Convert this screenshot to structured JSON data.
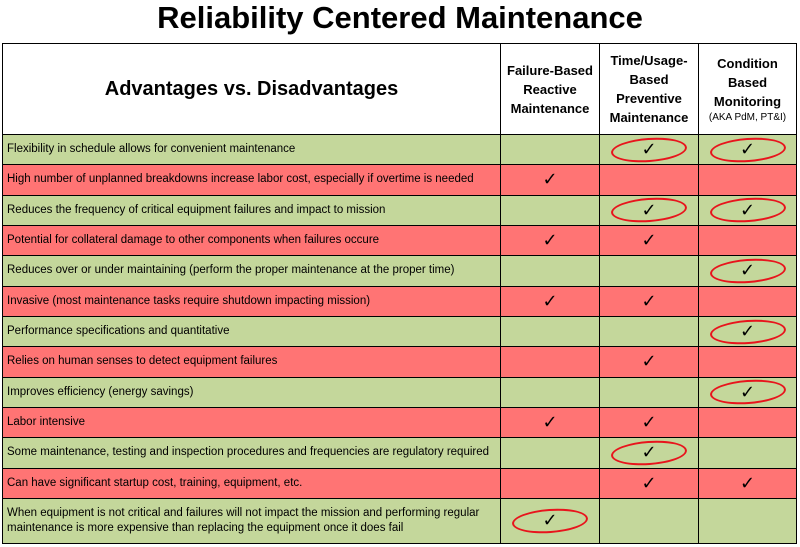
{
  "title": "Reliability Centered Maintenance",
  "table": {
    "header_main": "Advantages vs. Disadvantages",
    "columns": [
      {
        "label": "Failure-Based Reactive Maintenance",
        "sub": ""
      },
      {
        "label": "Time/Usage-Based Preventive Maintenance",
        "sub": ""
      },
      {
        "label": "Condition Based Monitoring",
        "sub": "(AKA PdM, PT&I)"
      }
    ],
    "rows": [
      {
        "text": "Flexibility in schedule allows for convenient maintenance",
        "color": "green",
        "marks": [
          "",
          "✓",
          "✓"
        ],
        "circled": [
          false,
          true,
          true
        ]
      },
      {
        "text": "High number of unplanned breakdowns increase labor cost, especially if overtime is needed",
        "color": "red",
        "marks": [
          "✓",
          "",
          ""
        ],
        "circled": [
          false,
          false,
          false
        ]
      },
      {
        "text": "Reduces the frequency of critical equipment failures and impact to mission",
        "color": "green",
        "marks": [
          "",
          "✓",
          "✓"
        ],
        "circled": [
          false,
          true,
          true
        ]
      },
      {
        "text": "Potential for collateral damage to other components when failures occure",
        "color": "red",
        "marks": [
          "✓",
          "✓",
          ""
        ],
        "circled": [
          false,
          false,
          false
        ]
      },
      {
        "text": "Reduces over or under maintaining (perform the proper maintenance at the proper time)",
        "color": "green",
        "marks": [
          "",
          "",
          "✓"
        ],
        "circled": [
          false,
          false,
          true
        ]
      },
      {
        "text": "Invasive (most maintenance tasks require shutdown impacting mission)",
        "color": "red",
        "marks": [
          "✓",
          "✓",
          ""
        ],
        "circled": [
          false,
          false,
          false
        ]
      },
      {
        "text": "Performance specifications and quantitative",
        "color": "green",
        "marks": [
          "",
          "",
          "✓"
        ],
        "circled": [
          false,
          false,
          true
        ]
      },
      {
        "text": "Relies on human senses to detect equipment failures",
        "color": "red",
        "marks": [
          "",
          "✓",
          ""
        ],
        "circled": [
          false,
          false,
          false
        ]
      },
      {
        "text": "Improves efficiency (energy savings)",
        "color": "green",
        "marks": [
          "",
          "",
          "✓"
        ],
        "circled": [
          false,
          false,
          true
        ]
      },
      {
        "text": "Labor intensive",
        "color": "red",
        "marks": [
          "✓",
          "✓",
          ""
        ],
        "circled": [
          false,
          false,
          false
        ]
      },
      {
        "text": "Some maintenance, testing and inspection procedures and frequencies are regulatory required",
        "color": "green",
        "marks": [
          "",
          "✓",
          ""
        ],
        "circled": [
          false,
          true,
          false
        ]
      },
      {
        "text": "Can have significant startup cost, training, equipment, etc.",
        "color": "red",
        "marks": [
          "",
          "✓",
          "✓"
        ],
        "circled": [
          false,
          false,
          false
        ]
      },
      {
        "text": "When equipment is not critical and failures will not impact the mission and performing regular maintenance is more expensive than replacing the equipment once it does fail",
        "color": "green",
        "marks": [
          "✓",
          "",
          ""
        ],
        "circled": [
          true,
          false,
          false
        ]
      }
    ]
  },
  "colors": {
    "advantage_row": "#c4d79b",
    "disadvantage_row": "#ff7474",
    "circle_annotation": "#e8141c"
  }
}
